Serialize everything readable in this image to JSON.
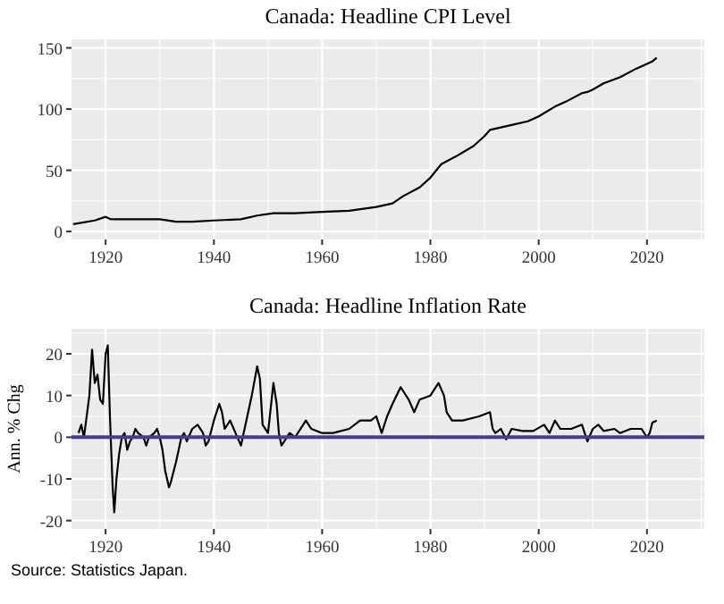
{
  "chart_data": [
    {
      "type": "line",
      "title": "Canada: Headline CPI Level",
      "xlim": [
        1913.7,
        2030.6
      ],
      "xticks": [
        1920,
        1940,
        1960,
        1980,
        2000,
        2020
      ],
      "ylim": [
        -6.5,
        157
      ],
      "yticks": [
        0,
        50,
        100,
        150
      ],
      "grid": true,
      "series": [
        {
          "color": "#000000",
          "x": [
            1914,
            1918,
            1920,
            1921,
            1925,
            1930,
            1933,
            1936,
            1940,
            1945,
            1948,
            1951,
            1953,
            1955,
            1960,
            1965,
            1970,
            1973,
            1975,
            1978,
            1980,
            1982,
            1985,
            1988,
            1990,
            1991,
            1993,
            1995,
            1998,
            2000,
            2003,
            2005,
            2008,
            2009,
            2010,
            2012,
            2015,
            2018,
            2020,
            2021,
            2021.8
          ],
          "values": [
            6,
            9,
            12,
            10,
            10,
            10,
            8,
            8,
            9,
            10,
            13,
            15,
            15,
            15,
            16,
            17,
            20,
            23,
            29,
            36,
            44,
            55,
            62,
            70,
            78,
            83,
            85,
            87,
            90,
            94,
            102,
            106,
            113,
            114,
            116,
            121,
            126,
            133,
            137,
            139,
            142
          ]
        }
      ]
    },
    {
      "type": "line",
      "title": "Canada: Headline Inflation Rate",
      "ylabel": "Ann. % Chg",
      "xlim": [
        1913.7,
        2030.6
      ],
      "xticks": [
        1920,
        1940,
        1960,
        1980,
        2000,
        2020
      ],
      "ylim": [
        -22,
        26
      ],
      "yticks": [
        -20,
        -10,
        0,
        10,
        20
      ],
      "grid": true,
      "ref_lines": [
        {
          "axis": "y",
          "value": 0,
          "color": "#483d8b"
        }
      ],
      "annotations": [
        "Source: Statistics Japan."
      ],
      "series": [
        {
          "color": "#000000",
          "x": [
            1915,
            1915.5,
            1916,
            1917,
            1917.5,
            1918,
            1918.5,
            1919,
            1919.5,
            1920,
            1920.4,
            1920.8,
            1921.3,
            1921.6,
            1922,
            1922.5,
            1923,
            1923.5,
            1924,
            1924.5,
            1925,
            1925.5,
            1926,
            1927,
            1927.5,
            1928,
            1929,
            1929.5,
            1930,
            1930.5,
            1931,
            1931.7,
            1932,
            1933,
            1934,
            1934.5,
            1935,
            1936,
            1937,
            1938,
            1938.5,
            1939,
            1940,
            1941,
            1941.5,
            1942,
            1943,
            1944,
            1945,
            1945.5,
            1946,
            1947,
            1948,
            1948.5,
            1949,
            1950,
            1951,
            1951.6,
            1952,
            1952.5,
            1953,
            1954,
            1955,
            1956,
            1957,
            1958,
            1960,
            1962,
            1965,
            1967,
            1969,
            1970,
            1971,
            1972,
            1973,
            1974.5,
            1975,
            1976,
            1977,
            1978,
            1980,
            1981.5,
            1982.5,
            1983,
            1984,
            1986,
            1989,
            1991,
            1991.5,
            1992,
            1993,
            1994,
            1995,
            1997,
            1999,
            2001,
            2002,
            2003,
            2004,
            2006,
            2008,
            2009,
            2010,
            2011,
            2012,
            2014,
            2015,
            2017,
            2019,
            2020,
            2020.5,
            2021,
            2021.8
          ],
          "values": [
            1,
            3,
            0,
            10,
            21,
            13,
            15,
            9,
            8,
            20,
            22,
            5,
            -12,
            -18,
            -10,
            -4,
            0,
            1,
            -3,
            -1,
            0,
            2,
            1,
            0,
            -2,
            0,
            1,
            2,
            0,
            -3,
            -8,
            -12,
            -11,
            -6,
            0,
            1,
            -1,
            2,
            3,
            1,
            -2,
            -1,
            4,
            8,
            6,
            2,
            4,
            1,
            -2,
            1,
            4,
            10,
            17,
            14,
            3,
            1,
            13,
            8,
            1,
            -2,
            -1,
            1,
            0,
            2,
            4,
            2,
            1,
            1,
            2,
            4,
            4,
            5,
            1,
            5,
            8,
            12,
            11,
            9,
            6,
            9,
            10,
            13,
            10,
            6,
            4,
            4,
            5,
            6,
            2,
            1,
            2,
            -0.5,
            2,
            1.5,
            1.5,
            3,
            1,
            4,
            2,
            2,
            3,
            -1,
            2,
            3,
            1.5,
            2,
            1,
            2,
            2,
            0,
            1,
            3.5,
            4
          ]
        }
      ]
    }
  ]
}
